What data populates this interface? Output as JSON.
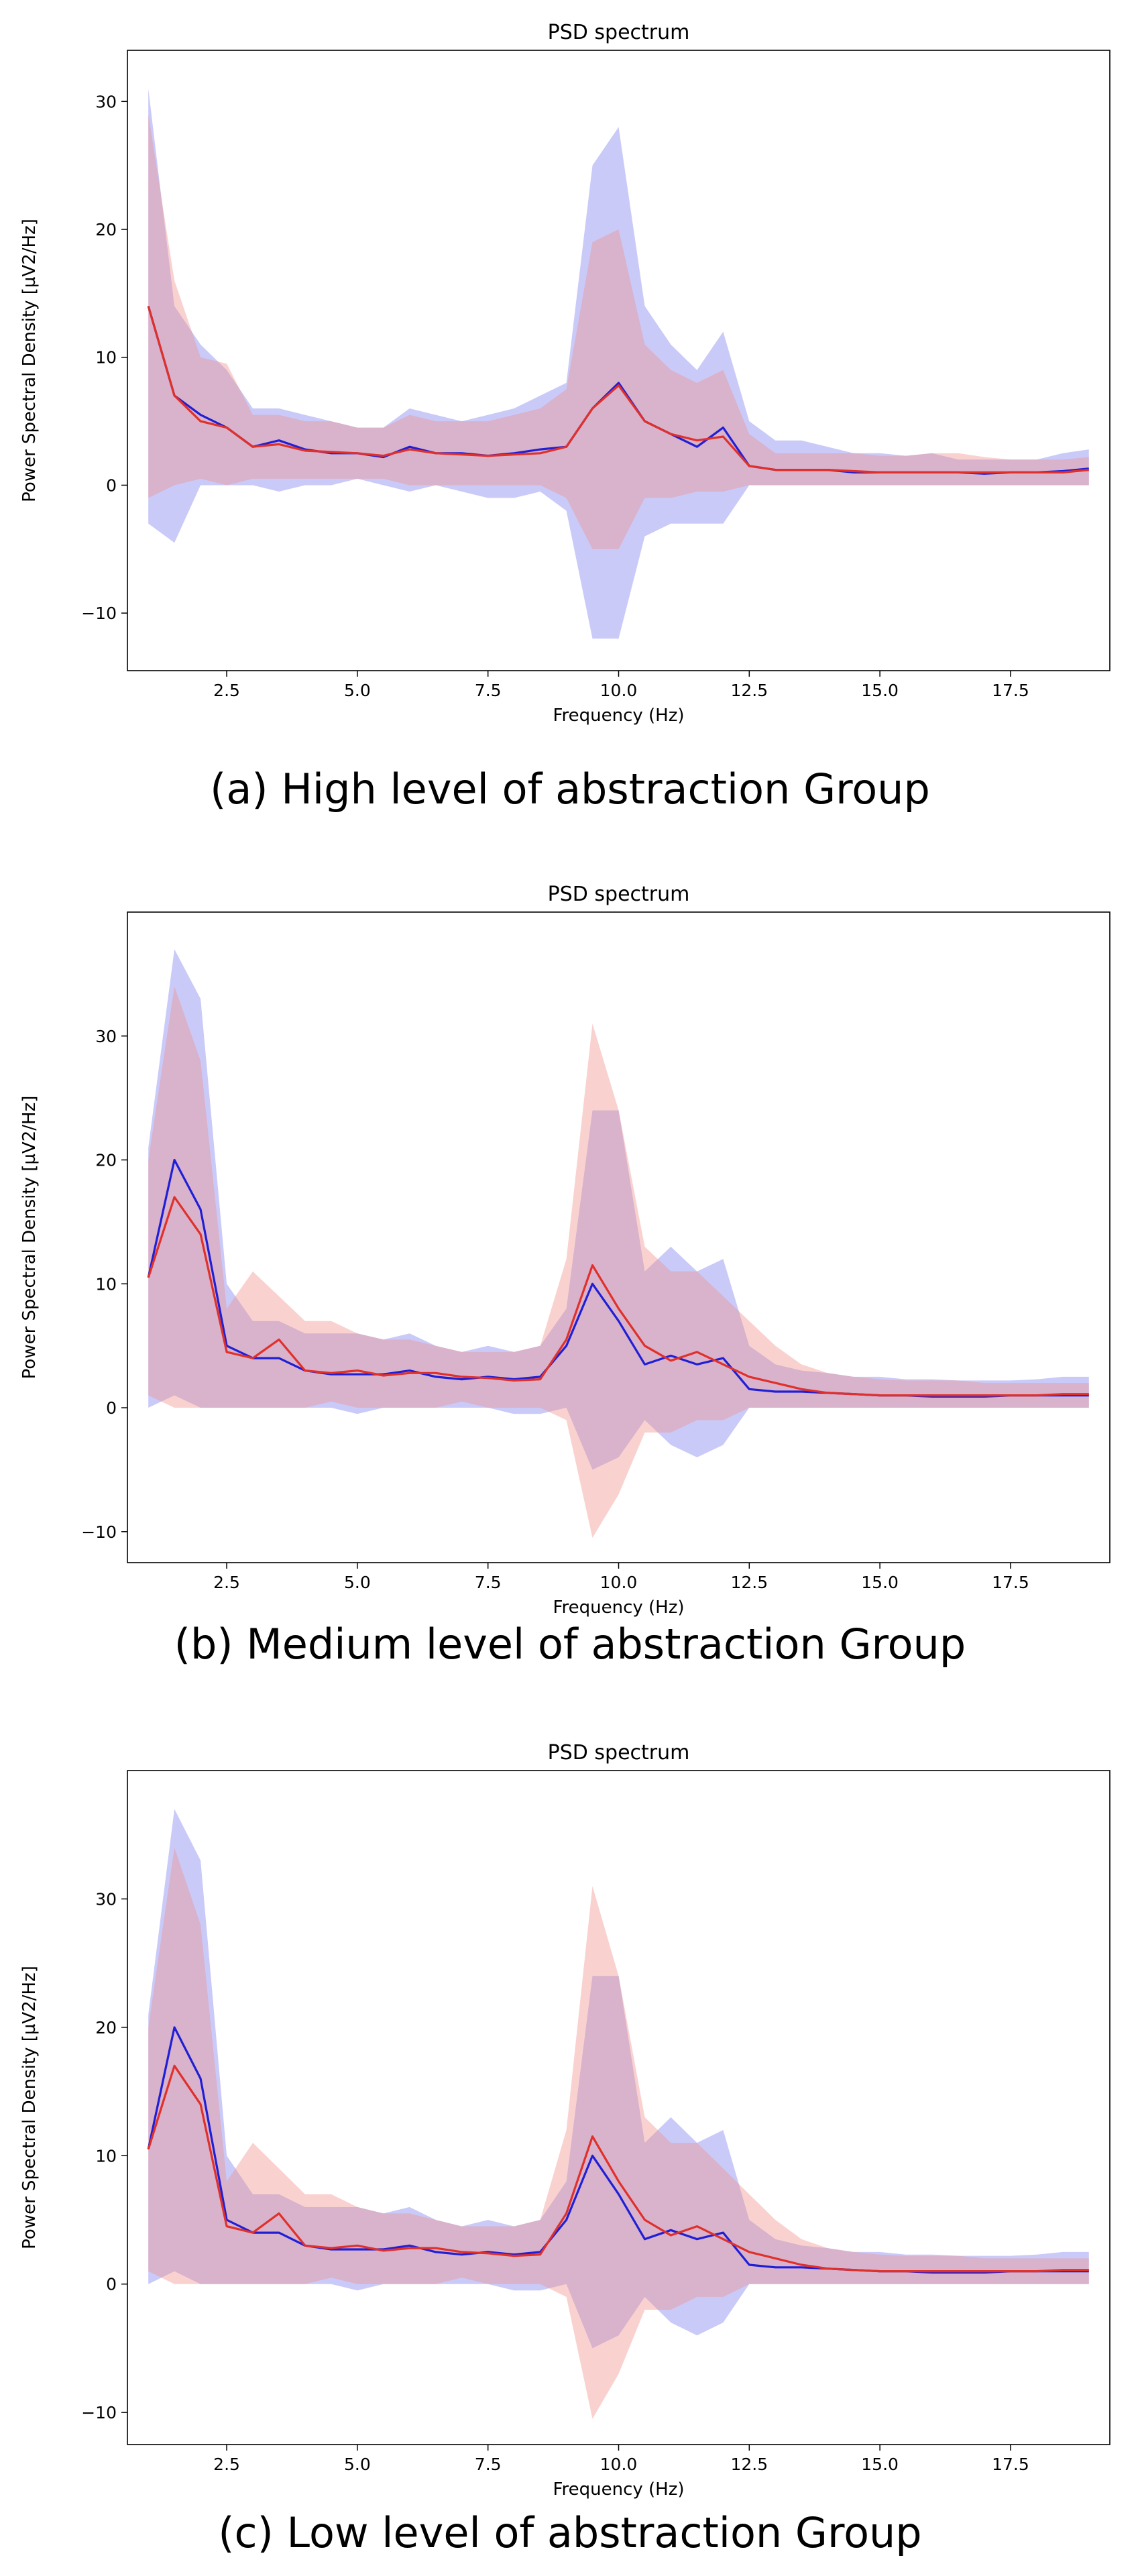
{
  "chart_data": [
    {
      "type": "line",
      "title": "PSD spectrum",
      "xlabel": "Frequency (Hz)",
      "ylabel": "Power Spectral Density [µV2/Hz]",
      "caption": "(a) High level of abstraction Group",
      "xlim": [
        0.6,
        19.4
      ],
      "ylim": [
        -14.5,
        34
      ],
      "xticks": [
        "2.5",
        "5.0",
        "7.5",
        "10.0",
        "12.5",
        "15.0",
        "17.5"
      ],
      "yticks": [
        "−10",
        "0",
        "10",
        "20",
        "30"
      ],
      "x": [
        1.0,
        1.5,
        2.0,
        2.5,
        3.0,
        3.5,
        4.0,
        4.5,
        5.0,
        5.5,
        6.0,
        6.5,
        7.0,
        7.5,
        8.0,
        8.5,
        9.0,
        9.5,
        10.0,
        10.5,
        11.0,
        11.5,
        12.0,
        12.5,
        13.0,
        13.5,
        14.0,
        14.5,
        15.0,
        15.5,
        16.0,
        16.5,
        17.0,
        17.5,
        18.0,
        18.5,
        19.0
      ],
      "series": [
        {
          "name": "blue",
          "color": "#1f1fd6",
          "band_color": "#7b7bf0",
          "values": [
            14,
            7,
            5.5,
            4.5,
            3,
            3.5,
            2.8,
            2.5,
            2.5,
            2.2,
            3,
            2.5,
            2.5,
            2.3,
            2.5,
            2.8,
            3,
            6,
            8,
            5,
            4,
            3,
            4.5,
            1.5,
            1.2,
            1.2,
            1.2,
            1,
            1,
            1,
            1,
            1,
            0.9,
            1,
            1,
            1.1,
            1.3
          ],
          "upper": [
            31,
            14,
            11,
            9,
            6,
            6,
            5.5,
            5,
            4.5,
            4.5,
            6,
            5.5,
            5,
            5.5,
            6,
            7,
            8,
            25,
            28,
            14,
            11,
            9,
            12,
            5,
            3.5,
            3.5,
            3,
            2.5,
            2.5,
            2.3,
            2.5,
            2,
            2,
            2,
            2,
            2.5,
            2.8
          ],
          "lower": [
            -3,
            -4.5,
            0,
            0,
            0,
            -0.5,
            0,
            0,
            0.5,
            0,
            -0.5,
            0,
            -0.5,
            -1,
            -1,
            -0.5,
            -2,
            -12,
            -12,
            -4,
            -3,
            -3,
            -3,
            0,
            0,
            0,
            0,
            0,
            0,
            0,
            0,
            0,
            0,
            0,
            0,
            0,
            0
          ]
        },
        {
          "name": "red",
          "color": "#e0302a",
          "band_color": "#ef8f89",
          "values": [
            14,
            7,
            5,
            4.5,
            3,
            3.2,
            2.7,
            2.6,
            2.5,
            2.3,
            2.8,
            2.5,
            2.4,
            2.3,
            2.4,
            2.5,
            3,
            6,
            7.8,
            5,
            4,
            3.5,
            3.8,
            1.5,
            1.2,
            1.2,
            1.2,
            1.1,
            1,
            1,
            1,
            1,
            1,
            1,
            1,
            1,
            1.2
          ],
          "upper": [
            29,
            16,
            10,
            9.5,
            5.5,
            5.5,
            5,
            5,
            4.5,
            4.5,
            5.5,
            5,
            5,
            5,
            5.5,
            6,
            7.5,
            19,
            20,
            11,
            9,
            8,
            9,
            4,
            2.5,
            2.5,
            2.5,
            2.5,
            2.3,
            2.3,
            2.5,
            2.5,
            2.2,
            2,
            2,
            2,
            2.2
          ],
          "lower": [
            -1,
            0,
            0.5,
            0,
            0.5,
            0.5,
            0.5,
            0.5,
            0.5,
            0.5,
            0,
            0,
            0,
            0,
            0,
            0,
            -1,
            -5,
            -5,
            -1,
            -1,
            -0.5,
            -0.5,
            0,
            0,
            0,
            0,
            0,
            0,
            0,
            0,
            0,
            0,
            0,
            0,
            0,
            0
          ]
        }
      ]
    },
    {
      "type": "line",
      "title": "PSD spectrum",
      "xlabel": "Frequency (Hz)",
      "ylabel": "Power Spectral Density [µV2/Hz]",
      "caption": "(b) Medium level of abstraction Group",
      "xlim": [
        0.6,
        19.4
      ],
      "ylim": [
        -12.5,
        40
      ],
      "xticks": [
        "2.5",
        "5.0",
        "7.5",
        "10.0",
        "12.5",
        "15.0",
        "17.5"
      ],
      "yticks": [
        "−10",
        "0",
        "10",
        "20",
        "30"
      ],
      "x": [
        1.0,
        1.5,
        2.0,
        2.5,
        3.0,
        3.5,
        4.0,
        4.5,
        5.0,
        5.5,
        6.0,
        6.5,
        7.0,
        7.5,
        8.0,
        8.5,
        9.0,
        9.5,
        10.0,
        10.5,
        11.0,
        11.5,
        12.0,
        12.5,
        13.0,
        13.5,
        14.0,
        14.5,
        15.0,
        15.5,
        16.0,
        16.5,
        17.0,
        17.5,
        18.0,
        18.5,
        19.0
      ],
      "series": [
        {
          "name": "blue",
          "color": "#1f1fd6",
          "band_color": "#7b7bf0",
          "values": [
            10.5,
            20,
            16,
            5,
            4,
            4,
            3,
            2.7,
            2.7,
            2.7,
            3,
            2.5,
            2.3,
            2.5,
            2.3,
            2.5,
            5,
            10,
            7,
            3.5,
            4.2,
            3.5,
            4,
            1.5,
            1.3,
            1.3,
            1.2,
            1.1,
            1,
            1,
            0.9,
            0.9,
            0.9,
            1,
            1,
            1,
            1
          ],
          "upper": [
            21,
            37,
            33,
            10,
            7,
            7,
            6,
            6,
            6,
            5.5,
            6,
            5,
            4.5,
            5,
            4.5,
            5,
            8,
            24,
            24,
            11,
            13,
            11,
            12,
            5,
            3.5,
            3,
            2.8,
            2.5,
            2.5,
            2.3,
            2.3,
            2.2,
            2.2,
            2.2,
            2.3,
            2.5,
            2.5
          ],
          "lower": [
            0,
            1,
            0,
            0,
            0,
            0,
            0,
            0,
            -0.5,
            0,
            0,
            0,
            0,
            0,
            -0.5,
            -0.5,
            0,
            -5,
            -4,
            -1,
            -3,
            -4,
            -3,
            0,
            0,
            0,
            0,
            0,
            0,
            0,
            0,
            0,
            0,
            0,
            0,
            0,
            0
          ]
        },
        {
          "name": "red",
          "color": "#e0302a",
          "band_color": "#ef8f89",
          "values": [
            10.5,
            17,
            14,
            4.5,
            4,
            5.5,
            3,
            2.8,
            3,
            2.6,
            2.8,
            2.8,
            2.5,
            2.4,
            2.2,
            2.3,
            5.5,
            11.5,
            8,
            5,
            3.8,
            4.5,
            3.5,
            2.5,
            2,
            1.5,
            1.2,
            1.1,
            1,
            1,
            1,
            1,
            1,
            1,
            1,
            1.1,
            1.1
          ],
          "upper": [
            20,
            34,
            28,
            8,
            11,
            9,
            7,
            7,
            6,
            5.5,
            5.5,
            5,
            4.5,
            4.5,
            4.5,
            5,
            12,
            31,
            24,
            13,
            11,
            11,
            9,
            7,
            5,
            3.5,
            2.8,
            2.5,
            2.3,
            2.2,
            2.2,
            2.2,
            2,
            2,
            2,
            2,
            2
          ],
          "lower": [
            1,
            0,
            0,
            0,
            0,
            0,
            0,
            0.5,
            0,
            0,
            0,
            0,
            0.5,
            0,
            0,
            0,
            -1,
            -10.5,
            -7,
            -2,
            -2,
            -1,
            -1,
            0,
            0,
            0,
            0,
            0,
            0,
            0,
            0,
            0,
            0,
            0,
            0,
            0,
            0
          ]
        }
      ]
    },
    {
      "type": "line",
      "title": "PSD spectrum",
      "xlabel": "Frequency (Hz)",
      "ylabel": "Power Spectral Density [µV2/Hz]",
      "caption": "(c) Low level of abstraction Group",
      "xlim": [
        0.6,
        19.4
      ],
      "ylim": [
        -12.5,
        40
      ],
      "xticks": [
        "2.5",
        "5.0",
        "7.5",
        "10.0",
        "12.5",
        "15.0",
        "17.5"
      ],
      "yticks": [
        "−10",
        "0",
        "10",
        "20",
        "30"
      ],
      "x": [
        1.0,
        1.5,
        2.0,
        2.5,
        3.0,
        3.5,
        4.0,
        4.5,
        5.0,
        5.5,
        6.0,
        6.5,
        7.0,
        7.5,
        8.0,
        8.5,
        9.0,
        9.5,
        10.0,
        10.5,
        11.0,
        11.5,
        12.0,
        12.5,
        13.0,
        13.5,
        14.0,
        14.5,
        15.0,
        15.5,
        16.0,
        16.5,
        17.0,
        17.5,
        18.0,
        18.5,
        19.0
      ],
      "series": [
        {
          "name": "blue",
          "color": "#1f1fd6",
          "band_color": "#7b7bf0",
          "values": [
            10.5,
            20,
            16,
            5,
            4,
            4,
            3,
            2.7,
            2.7,
            2.7,
            3,
            2.5,
            2.3,
            2.5,
            2.3,
            2.5,
            5,
            10,
            7,
            3.5,
            4.2,
            3.5,
            4,
            1.5,
            1.3,
            1.3,
            1.2,
            1.1,
            1,
            1,
            0.9,
            0.9,
            0.9,
            1,
            1,
            1,
            1
          ],
          "upper": [
            21,
            37,
            33,
            10,
            7,
            7,
            6,
            6,
            6,
            5.5,
            6,
            5,
            4.5,
            5,
            4.5,
            5,
            8,
            24,
            24,
            11,
            13,
            11,
            12,
            5,
            3.5,
            3,
            2.8,
            2.5,
            2.5,
            2.3,
            2.3,
            2.2,
            2.2,
            2.2,
            2.3,
            2.5,
            2.5
          ],
          "lower": [
            0,
            1,
            0,
            0,
            0,
            0,
            0,
            0,
            -0.5,
            0,
            0,
            0,
            0,
            0,
            -0.5,
            -0.5,
            0,
            -5,
            -4,
            -1,
            -3,
            -4,
            -3,
            0,
            0,
            0,
            0,
            0,
            0,
            0,
            0,
            0,
            0,
            0,
            0,
            0,
            0
          ]
        },
        {
          "name": "red",
          "color": "#e0302a",
          "band_color": "#ef8f89",
          "values": [
            10.5,
            17,
            14,
            4.5,
            4,
            5.5,
            3,
            2.8,
            3,
            2.6,
            2.8,
            2.8,
            2.5,
            2.4,
            2.2,
            2.3,
            5.5,
            11.5,
            8,
            5,
            3.8,
            4.5,
            3.5,
            2.5,
            2,
            1.5,
            1.2,
            1.1,
            1,
            1,
            1,
            1,
            1,
            1,
            1,
            1.1,
            1.1
          ],
          "upper": [
            20,
            34,
            28,
            8,
            11,
            9,
            7,
            7,
            6,
            5.5,
            5.5,
            5,
            4.5,
            4.5,
            4.5,
            5,
            12,
            31,
            24,
            13,
            11,
            11,
            9,
            7,
            5,
            3.5,
            2.8,
            2.5,
            2.3,
            2.2,
            2.2,
            2.2,
            2,
            2,
            2,
            2,
            2
          ],
          "lower": [
            1,
            0,
            0,
            0,
            0,
            0,
            0,
            0.5,
            0,
            0,
            0,
            0,
            0.5,
            0,
            0,
            0,
            -1,
            -10.5,
            -7,
            -2,
            -2,
            -1,
            -1,
            0,
            0,
            0,
            0,
            0,
            0,
            0,
            0,
            0,
            0,
            0,
            0,
            0,
            0
          ]
        }
      ]
    }
  ]
}
